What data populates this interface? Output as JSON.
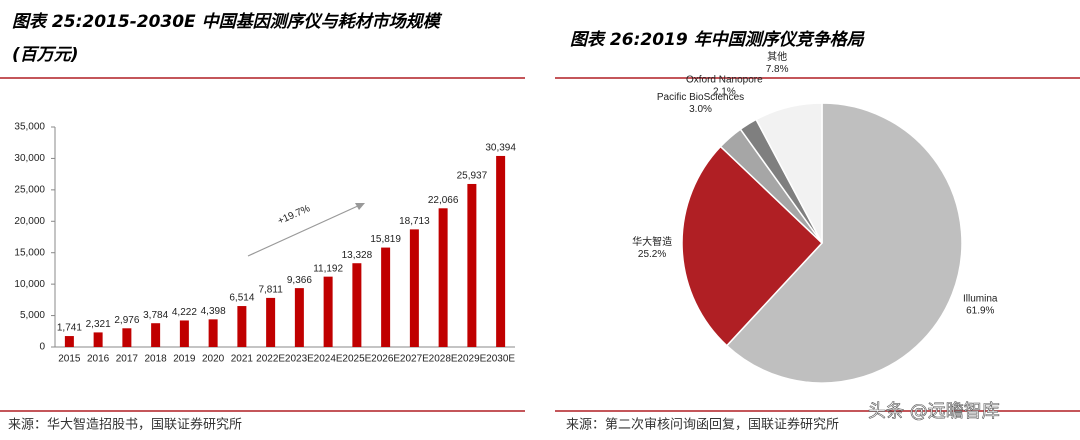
{
  "chart_data": [
    {
      "type": "bar",
      "title": "图表 25:2015-2030E 中国基因测序仪与耗材市场规模",
      "subtitle": "(百万元)",
      "categories": [
        "2015",
        "2016",
        "2017",
        "2018",
        "2019",
        "2020",
        "2021",
        "2022E",
        "2023E",
        "2024E",
        "2025E",
        "2026E",
        "2027E",
        "2028E",
        "2029E",
        "2030E"
      ],
      "values": [
        1741,
        2321,
        2976,
        3784,
        4222,
        4398,
        6514,
        7811,
        9366,
        11192,
        13328,
        15819,
        18713,
        22066,
        25937,
        30394
      ],
      "value_labels": [
        "1,741",
        "2,321",
        "2,976",
        "3,784",
        "4,222",
        "4,398",
        "6,514",
        "7,811",
        "9,366",
        "11,192",
        "13,328",
        "15,819",
        "18,713",
        "22,066",
        "25,937",
        "30,394"
      ],
      "color": "#c00000",
      "ylim": [
        0,
        35000
      ],
      "yticks": [
        0,
        {
          "value": 5000,
          "label": "5,000"
        },
        {
          "value": 10000,
          "label": "10,000"
        },
        {
          "value": 15000,
          "label": "15,000"
        },
        {
          "value": 20000,
          "label": "20,000"
        },
        {
          "value": 25000,
          "label": "25,000"
        },
        {
          "value": 30000,
          "label": "30,000"
        },
        {
          "value": 35000,
          "label": "35,000"
        }
      ],
      "annotation": "+19.7%",
      "source": "来源：华大智造招股书，国联证券研究所"
    },
    {
      "type": "pie",
      "title": "图表 26:2019 年中国测序仪竞争格局",
      "categories": [
        "Illumina",
        "华大智造",
        "Pacific BioSciences",
        "Oxford Nanopore",
        "其他"
      ],
      "values": [
        61.9,
        25.2,
        3.0,
        2.1,
        7.8
      ],
      "value_labels": [
        "61.9%",
        "25.2%",
        "3.0%",
        "2.1%",
        "7.8%"
      ],
      "colors": [
        "#bfbfbf",
        "#b01f24",
        "#a6a6a6",
        "#7f7f7f",
        "#f2f2f2"
      ],
      "source": "来源：第二次审核问询函回复，国联证券研究所"
    }
  ],
  "watermark": "头条 @远瞻智库"
}
